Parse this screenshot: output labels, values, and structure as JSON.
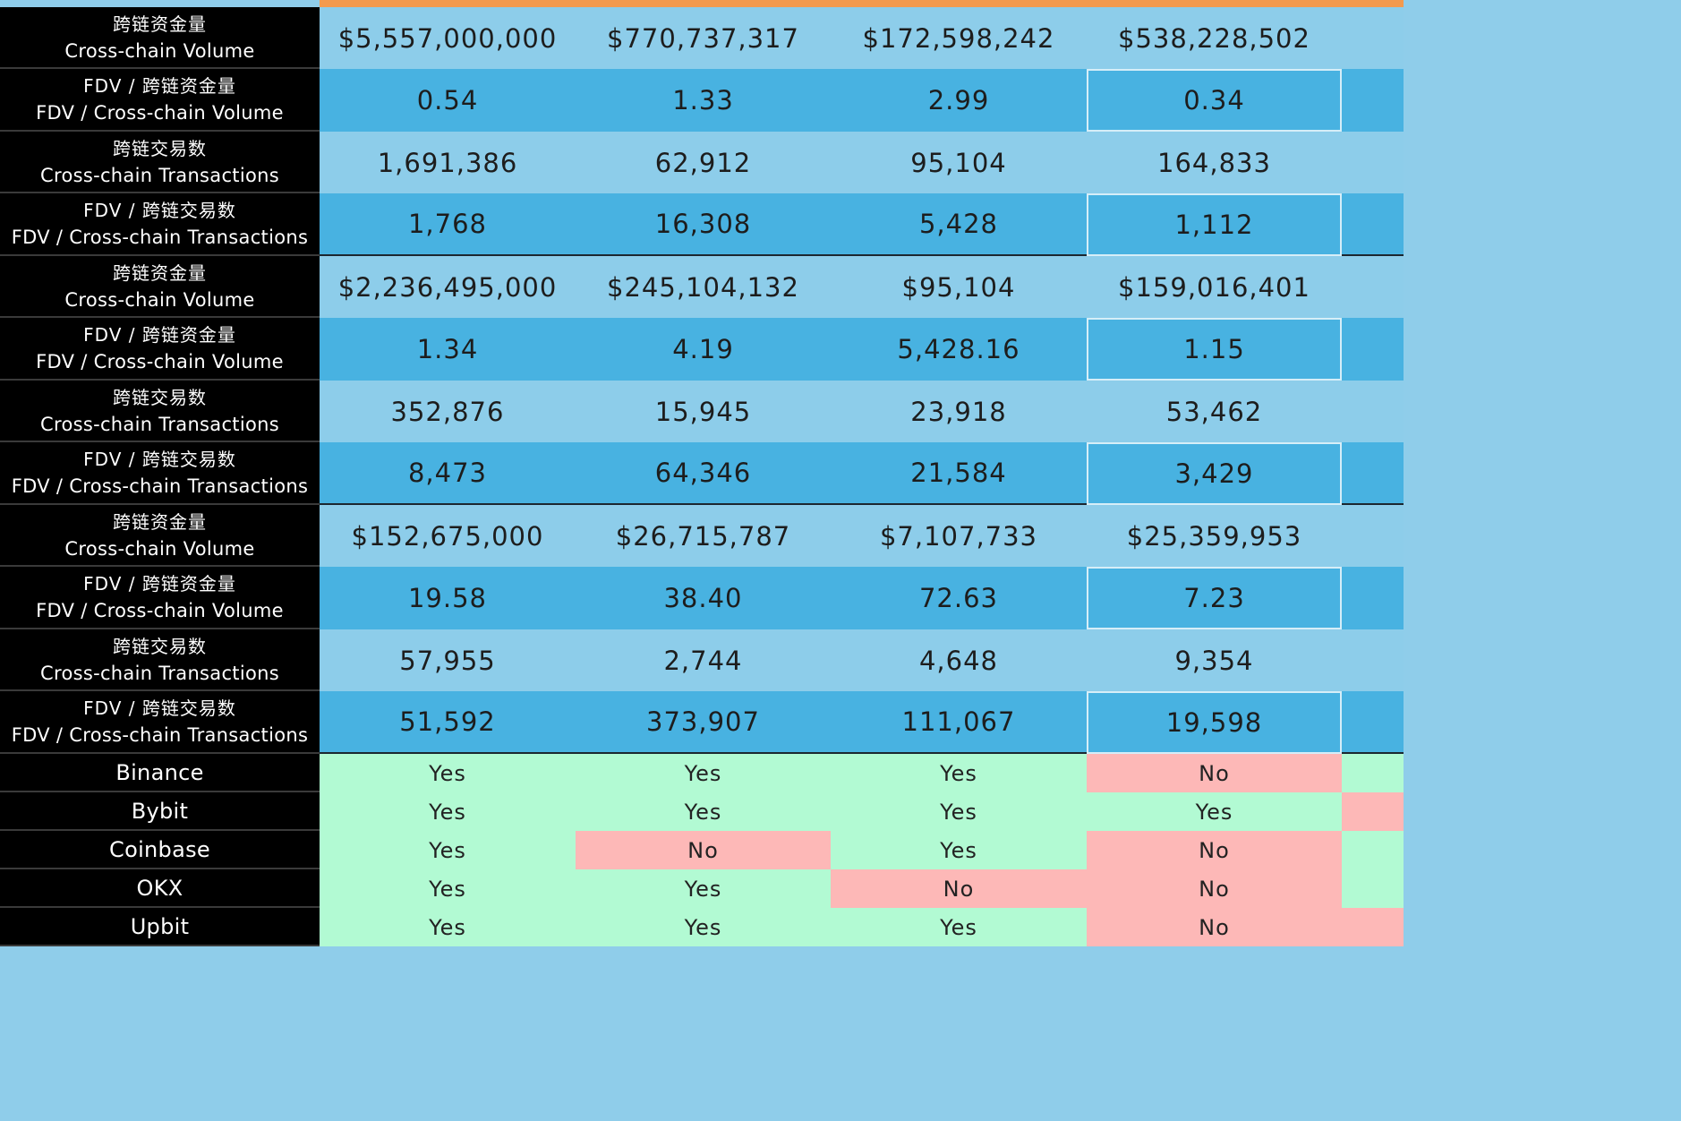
{
  "metric_rows": [
    {
      "zh": "跨链资金量",
      "en": "Cross-chain Volume",
      "values": [
        "$5,557,000,000",
        "$770,737,317",
        "$172,598,242",
        "$538,228,502"
      ]
    },
    {
      "zh": "FDV / 跨链资金量",
      "en": "FDV / Cross-chain Volume",
      "values": [
        "0.54",
        "1.33",
        "2.99",
        "0.34"
      ]
    },
    {
      "zh": "跨链交易数",
      "en": "Cross-chain Transactions",
      "values": [
        "1,691,386",
        "62,912",
        "95,104",
        "164,833"
      ]
    },
    {
      "zh": "FDV / 跨链交易数",
      "en": "FDV / Cross-chain Transactions",
      "values": [
        "1,768",
        "16,308",
        "5,428",
        "1,112"
      ]
    },
    {
      "zh": "跨链资金量",
      "en": "Cross-chain Volume",
      "values": [
        "$2,236,495,000",
        "$245,104,132",
        "$95,104",
        "$159,016,401"
      ]
    },
    {
      "zh": "FDV / 跨链资金量",
      "en": "FDV / Cross-chain Volume",
      "values": [
        "1.34",
        "4.19",
        "5,428.16",
        "1.15"
      ]
    },
    {
      "zh": "跨链交易数",
      "en": "Cross-chain Transactions",
      "values": [
        "352,876",
        "15,945",
        "23,918",
        "53,462"
      ]
    },
    {
      "zh": "FDV / 跨链交易数",
      "en": "FDV / Cross-chain Transactions",
      "values": [
        "8,473",
        "64,346",
        "21,584",
        "3,429"
      ]
    },
    {
      "zh": "跨链资金量",
      "en": "Cross-chain Volume",
      "values": [
        "$152,675,000",
        "$26,715,787",
        "$7,107,733",
        "$25,359,953"
      ]
    },
    {
      "zh": "FDV / 跨链资金量",
      "en": "FDV / Cross-chain Volume",
      "values": [
        "19.58",
        "38.40",
        "72.63",
        "7.23"
      ]
    },
    {
      "zh": "跨链交易数",
      "en": "Cross-chain Transactions",
      "values": [
        "57,955",
        "2,744",
        "4,648",
        "9,354"
      ]
    },
    {
      "zh": "FDV / 跨链交易数",
      "en": "FDV / Cross-chain Transactions",
      "values": [
        "51,592",
        "373,907",
        "111,067",
        "19,598"
      ]
    }
  ],
  "exchange_rows": [
    {
      "name": "Binance",
      "values": [
        "Yes",
        "Yes",
        "Yes",
        "No"
      ]
    },
    {
      "name": "Bybit",
      "values": [
        "Yes",
        "Yes",
        "Yes",
        "Yes"
      ]
    },
    {
      "name": "Coinbase",
      "values": [
        "Yes",
        "No",
        "Yes",
        "No"
      ]
    },
    {
      "name": "OKX",
      "values": [
        "Yes",
        "Yes",
        "No",
        "No"
      ]
    },
    {
      "name": "Upbit",
      "values": [
        "Yes",
        "Yes",
        "Yes",
        "No"
      ]
    }
  ],
  "colors": {
    "yes": "#b2fad3",
    "no": "#fdb8b7",
    "header_accent": "#f39a4e"
  }
}
